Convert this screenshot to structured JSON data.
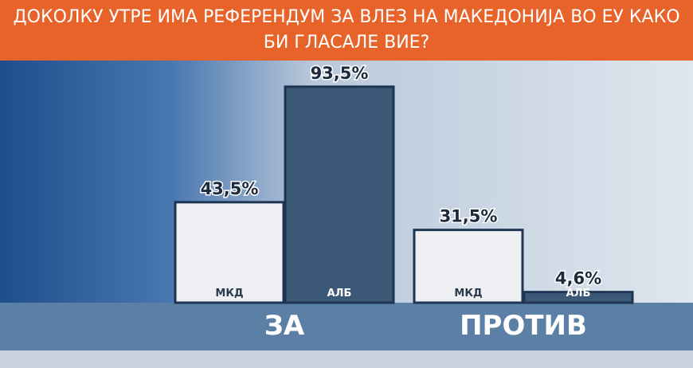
{
  "chart_data": {
    "type": "bar",
    "title": "ДОКОЛКУ УТРЕ ИМА РЕФЕРЕНДУМ ЗА ВЛЕЗ НА МАКЕДОНИЈА ВО ЕУ КАКО БИ ГЛАСАЛЕ ВИЕ?",
    "categories": [
      "ЗА",
      "ПРОТИВ"
    ],
    "series": [
      {
        "name": "МКД",
        "color": "#eef0f3",
        "values": [
          43.5,
          31.5
        ],
        "value_labels": [
          "43,5%",
          "31,5%"
        ]
      },
      {
        "name": "АЛБ",
        "color": "#3b5877",
        "values": [
          93.5,
          4.6
        ],
        "value_labels": [
          "93,5%",
          "4,6%"
        ]
      }
    ]
  }
}
